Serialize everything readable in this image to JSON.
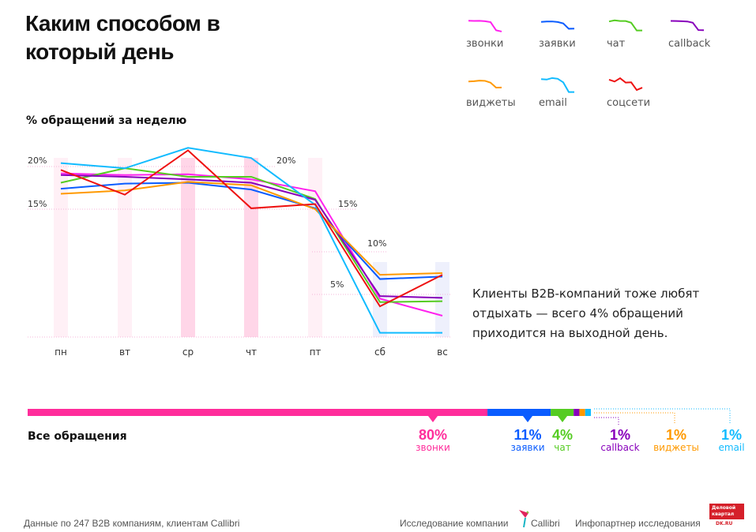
{
  "header": {
    "title": "Каким способом в который день",
    "subtitle": "% обращений за неделю"
  },
  "chart_data": {
    "type": "line",
    "title": "Каким способом в который день",
    "ylabel": "% обращений за неделю",
    "categories": [
      "пн",
      "вт",
      "ср",
      "чт",
      "пт",
      "сб",
      "вс"
    ],
    "ylim": [
      0,
      22
    ],
    "yticks": [
      "5%",
      "10%",
      "15%",
      "20%"
    ],
    "grid": true,
    "legend_placement": "top-right",
    "series": [
      {
        "name": "звонки",
        "color": "#ff22ee",
        "values": [
          19.2,
          19.0,
          19.1,
          18.5,
          17.1,
          4.5,
          2.5
        ]
      },
      {
        "name": "заявки",
        "color": "#0a5cff",
        "values": [
          17.4,
          18.0,
          18.1,
          17.3,
          15.1,
          6.8,
          7.1
        ]
      },
      {
        "name": "чат",
        "color": "#55cc22",
        "values": [
          18.1,
          19.8,
          18.8,
          18.8,
          16.2,
          4.1,
          4.2
        ]
      },
      {
        "name": "callback",
        "color": "#8800bb",
        "values": [
          19.0,
          18.8,
          18.5,
          18.1,
          16.1,
          4.8,
          4.6
        ]
      },
      {
        "name": "виджеты",
        "color": "#ff9900",
        "values": [
          16.8,
          17.2,
          18.2,
          17.8,
          15.0,
          7.3,
          7.5
        ]
      },
      {
        "name": "email",
        "color": "#11bbff",
        "values": [
          20.4,
          19.8,
          22.2,
          21.0,
          15.5,
          0.5,
          0.5
        ]
      },
      {
        "name": "соцсети",
        "color": "#ee1111",
        "values": [
          19.6,
          16.7,
          21.9,
          15.1,
          15.6,
          3.6,
          7.3
        ]
      }
    ]
  },
  "note": "Клиенты B2B-компаний тоже любят отдыхать — всего 4% обращений приходится на выходной день.",
  "totals": {
    "label": "Все обращения",
    "items": [
      {
        "pct": "80%",
        "name": "звонки",
        "value": 80,
        "color": "#ff2d9b"
      },
      {
        "pct": "11%",
        "name": "заявки",
        "value": 11,
        "color": "#0a5cff"
      },
      {
        "pct": "4%",
        "name": "чат",
        "value": 4,
        "color": "#55cc22"
      },
      {
        "pct": "1%",
        "name": "callback",
        "value": 1,
        "color": "#8800bb"
      },
      {
        "pct": "1%",
        "name": "виджеты",
        "value": 1,
        "color": "#ff9900"
      },
      {
        "pct": "1%",
        "name": "email",
        "value": 1,
        "color": "#11bbff"
      }
    ]
  },
  "footer": {
    "source": "Данные по 247 B2B компаниям, клиентам Callibri",
    "study": "Исследование компании",
    "callibri": "Callibri",
    "partner": "Инфопартнер исследования",
    "dk_logo": "Деловой квартал",
    "dk_url": "DK.RU"
  }
}
